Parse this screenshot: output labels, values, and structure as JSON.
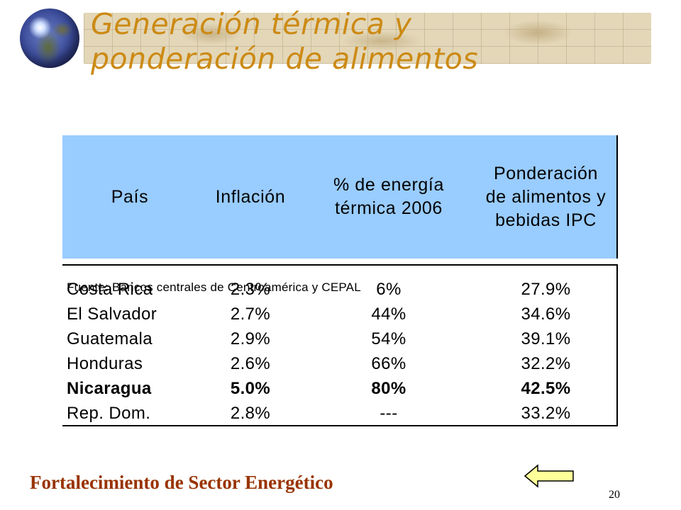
{
  "title": {
    "line1": "Generación térmica y",
    "line2": "ponderación de alimentos"
  },
  "icons": {
    "globe": "globe-icon",
    "back": "left-arrow-icon"
  },
  "colors": {
    "title": "#cc8a14",
    "header_bg": "#99ccff",
    "footer": "#993300"
  },
  "table": {
    "headers": [
      [
        "País"
      ],
      [
        "Inflación"
      ],
      [
        "% de energía",
        "térmica 2006"
      ],
      [
        "Ponderación",
        "de alimentos y",
        "bebidas IPC"
      ]
    ],
    "rows": [
      [
        "Costa Rica",
        "2.3%",
        "6%",
        "27.9%"
      ],
      [
        "El Salvador",
        "2.7%",
        "44%",
        "34.6%"
      ],
      [
        "Guatemala",
        "2.9%",
        "54%",
        "39.1%"
      ],
      [
        "Honduras",
        "2.6%",
        "66%",
        "32.2%"
      ],
      [
        "Nicaragua",
        "5.0%",
        "80%",
        "42.5%"
      ],
      [
        "Rep. Dom.",
        "2.8%",
        "---",
        "33.2%"
      ]
    ],
    "bold_row": "Nicaragua",
    "source": "Fuente: Bancos centrales de Centroamérica y CEPAL"
  },
  "footer": {
    "text": "Fortalecimiento de Sector Energético",
    "page": "20"
  }
}
